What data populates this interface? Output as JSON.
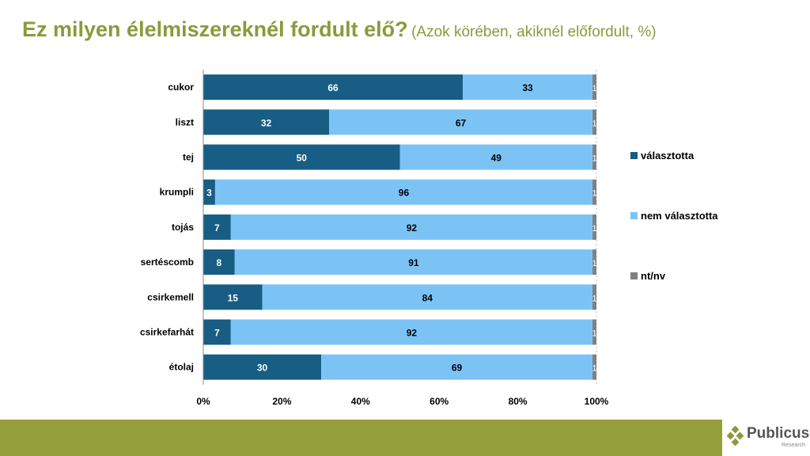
{
  "title": {
    "main": "Ez milyen élelmiszereknél fordult elő?",
    "sub": "(Azok körében, akiknél előfordult, %)"
  },
  "logo": {
    "name": "Publicus",
    "sub": "Research"
  },
  "chart_data": {
    "type": "bar",
    "orientation": "horizontal",
    "stacked": true,
    "categories": [
      "cukor",
      "liszt",
      "tej",
      "krumpli",
      "tojás",
      "sertéscomb",
      "csirkemell",
      "csirkefarhát",
      "étolaj"
    ],
    "series": [
      {
        "name": "választotta",
        "color": "#175d84",
        "values": [
          66,
          32,
          50,
          3,
          7,
          8,
          15,
          7,
          30
        ]
      },
      {
        "name": "nem választotta",
        "color": "#7cc3f5",
        "values": [
          33,
          67,
          49,
          96,
          92,
          91,
          84,
          92,
          69
        ]
      },
      {
        "name": "nt/nv",
        "color": "#808080",
        "values": [
          1,
          1,
          1,
          1,
          1,
          1,
          1,
          1,
          1
        ]
      }
    ],
    "xticks": [
      "0%",
      "20%",
      "40%",
      "60%",
      "80%",
      "100%"
    ],
    "xlim": [
      0,
      100
    ],
    "legend": "right"
  }
}
